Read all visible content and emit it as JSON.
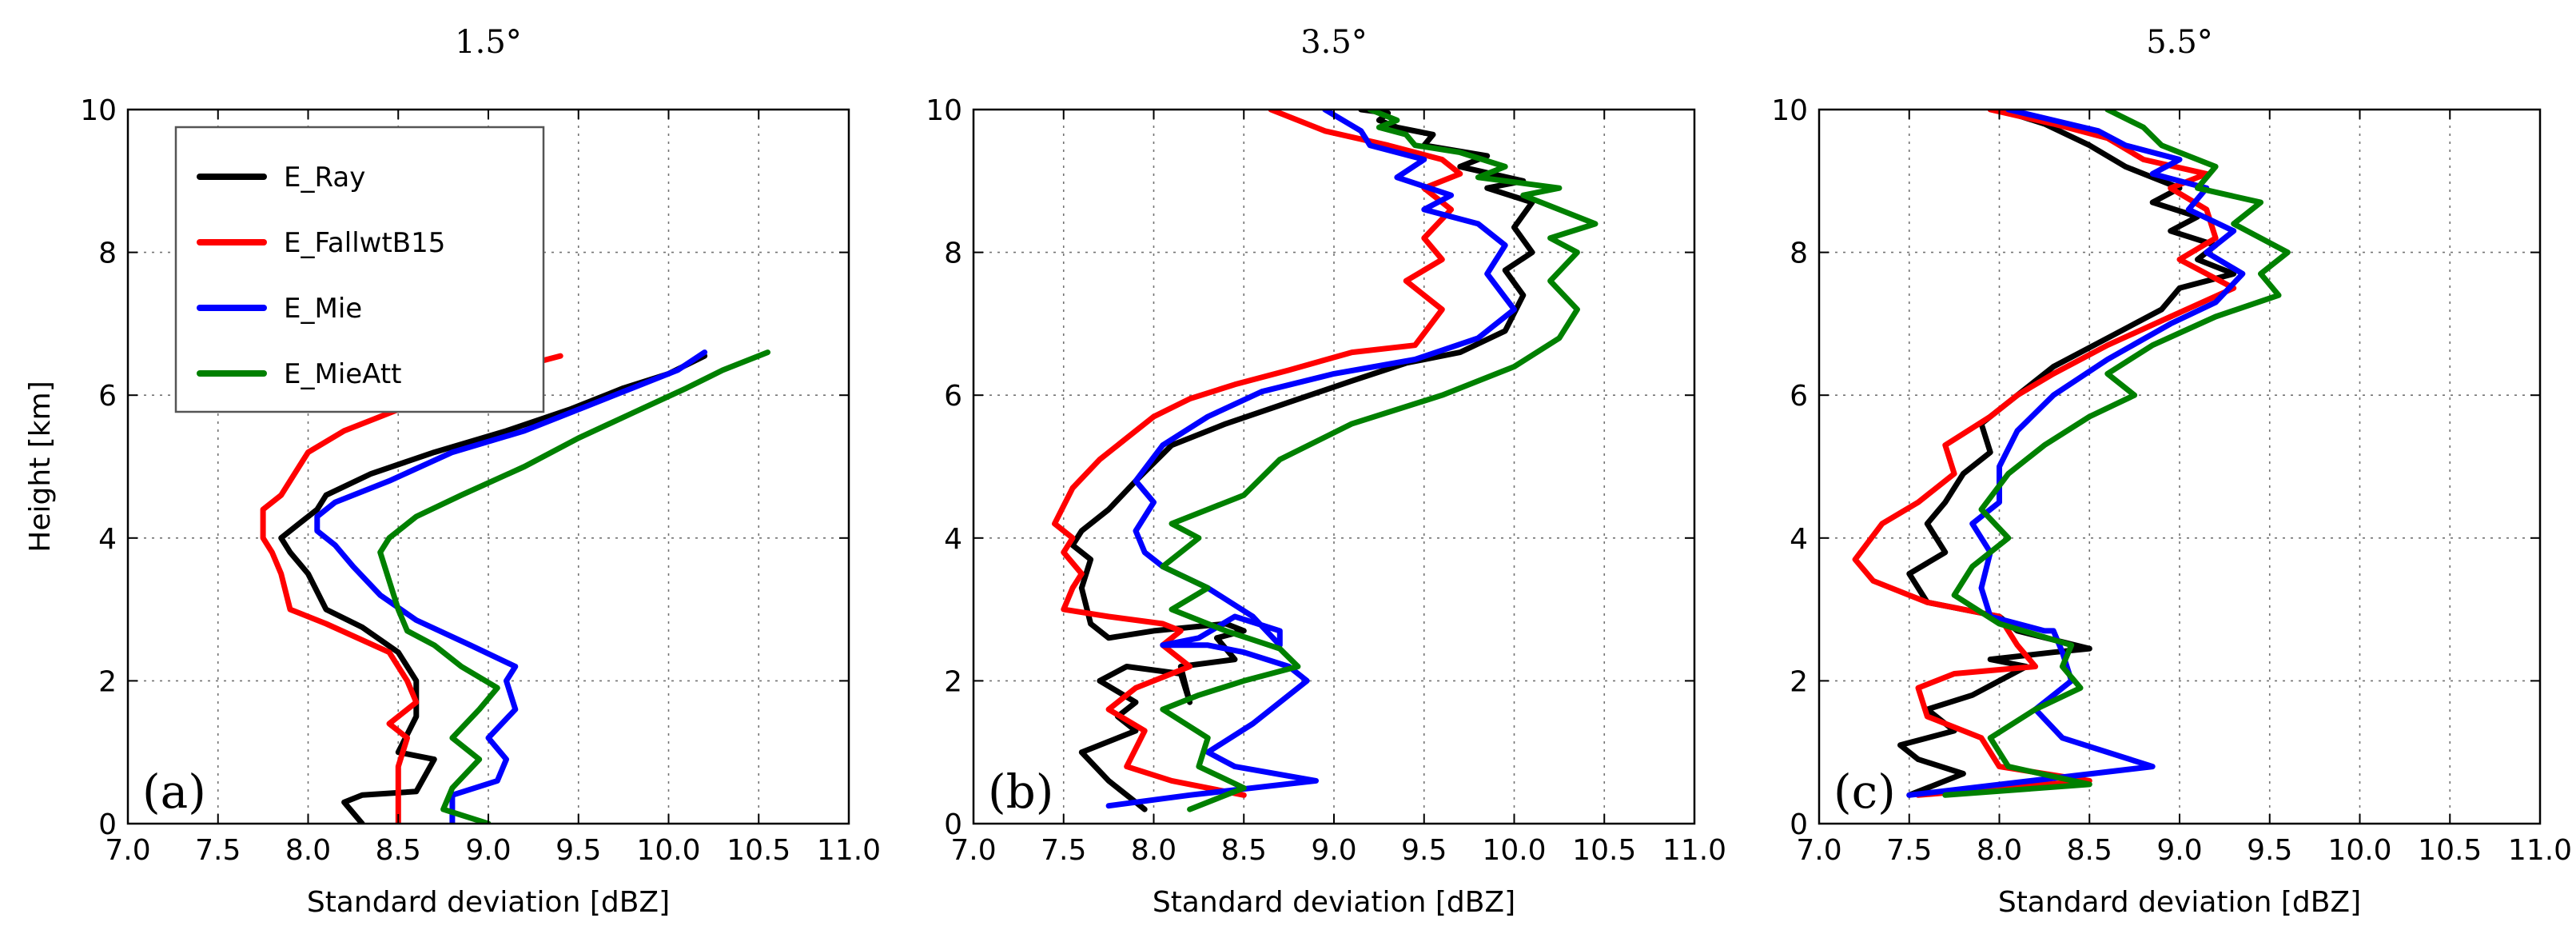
{
  "chart_data": [
    {
      "type": "line",
      "title": "1.5°",
      "panel_label": "(a)",
      "xlabel": "Standard deviation [dBZ]",
      "ylabel": "Height [km]",
      "xlim": [
        7.0,
        11.0
      ],
      "ylim": [
        0,
        10
      ],
      "xticks": [
        "7.0",
        "7.5",
        "8.0",
        "8.5",
        "9.0",
        "9.5",
        "10.0",
        "10.5",
        "11.0"
      ],
      "yticks": [
        "0",
        "2",
        "4",
        "6",
        "8",
        "10"
      ],
      "grid": true,
      "legend": {
        "position": "top-left",
        "entries": [
          {
            "label": "E_Ray",
            "color": "#000000"
          },
          {
            "label": "E_FallwtB15",
            "color": "#ff0000"
          },
          {
            "label": "E_Mie",
            "color": "#0000ff"
          },
          {
            "label": "E_MieAtt",
            "color": "#008000"
          }
        ]
      },
      "series": [
        {
          "name": "E_Ray",
          "color": "#000000",
          "x": [
            8.3,
            8.2,
            8.3,
            8.6,
            8.7,
            8.5,
            8.6,
            8.6,
            8.5,
            8.3,
            8.1,
            8.0,
            7.9,
            7.85,
            7.95,
            8.05,
            8.1,
            8.35,
            8.7,
            9.1,
            9.45,
            9.75,
            10.0,
            10.2
          ],
          "y": [
            0.0,
            0.3,
            0.4,
            0.45,
            0.9,
            1.0,
            1.5,
            2.0,
            2.4,
            2.75,
            3.0,
            3.5,
            3.8,
            4.0,
            4.2,
            4.4,
            4.6,
            4.9,
            5.2,
            5.5,
            5.8,
            6.1,
            6.3,
            6.55
          ]
        },
        {
          "name": "E_FallwtB15",
          "color": "#ff0000",
          "x": [
            8.5,
            8.5,
            8.5,
            8.55,
            8.45,
            8.6,
            8.55,
            8.45,
            8.1,
            7.9,
            7.85,
            7.8,
            7.75,
            7.75,
            7.85,
            7.95,
            8.0,
            8.2,
            8.5,
            8.8,
            9.1,
            9.4
          ],
          "y": [
            0.0,
            0.5,
            0.8,
            1.2,
            1.4,
            1.7,
            2.0,
            2.4,
            2.8,
            3.0,
            3.5,
            3.8,
            4.0,
            4.4,
            4.6,
            5.0,
            5.2,
            5.5,
            5.8,
            6.1,
            6.35,
            6.55
          ]
        },
        {
          "name": "E_Mie",
          "color": "#0000ff",
          "x": [
            8.8,
            8.8,
            9.05,
            9.1,
            9.0,
            9.15,
            9.1,
            9.15,
            8.9,
            8.6,
            8.4,
            8.25,
            8.15,
            8.05,
            8.05,
            8.15,
            8.45,
            8.8,
            9.2,
            9.55,
            9.85,
            10.05,
            10.2
          ],
          "y": [
            0.0,
            0.4,
            0.6,
            0.9,
            1.2,
            1.6,
            2.0,
            2.2,
            2.5,
            2.85,
            3.2,
            3.6,
            3.9,
            4.1,
            4.3,
            4.5,
            4.8,
            5.2,
            5.5,
            5.85,
            6.15,
            6.35,
            6.6
          ]
        },
        {
          "name": "E_MieAtt",
          "color": "#008000",
          "x": [
            9.0,
            8.75,
            8.8,
            8.95,
            8.8,
            8.95,
            9.05,
            8.85,
            8.7,
            8.55,
            8.5,
            8.45,
            8.4,
            8.45,
            8.6,
            8.85,
            9.2,
            9.5,
            9.8,
            10.1,
            10.3,
            10.55
          ],
          "y": [
            0.0,
            0.2,
            0.5,
            0.9,
            1.2,
            1.6,
            1.9,
            2.2,
            2.5,
            2.7,
            3.0,
            3.4,
            3.8,
            4.0,
            4.3,
            4.6,
            5.0,
            5.4,
            5.75,
            6.1,
            6.35,
            6.6
          ]
        }
      ]
    },
    {
      "type": "line",
      "title": "3.5°",
      "panel_label": "(b)",
      "xlabel": "Standard deviation [dBZ]",
      "ylabel": "",
      "xlim": [
        7.0,
        11.0
      ],
      "ylim": [
        0,
        10
      ],
      "xticks": [
        "7.0",
        "7.5",
        "8.0",
        "8.5",
        "9.0",
        "9.5",
        "10.0",
        "10.5",
        "11.0"
      ],
      "yticks": [
        "0",
        "2",
        "4",
        "6",
        "8",
        "10"
      ],
      "grid": true,
      "series": [
        {
          "name": "E_Ray",
          "color": "#000000",
          "x": [
            7.95,
            7.85,
            7.75,
            7.6,
            7.9,
            7.8,
            7.9,
            7.7,
            7.85,
            8.15,
            8.2,
            8.15,
            8.45,
            8.35,
            8.5,
            8.4,
            8.0,
            7.75,
            7.65,
            7.6,
            7.65,
            7.55,
            7.6,
            7.75,
            7.9,
            8.1,
            8.4,
            8.75,
            9.1,
            9.4,
            9.7,
            9.95,
            10.05,
            9.95,
            10.1,
            10.0,
            10.1,
            9.85,
            10.05,
            9.7,
            9.85,
            9.5,
            9.55,
            9.35,
            9.25,
            9.3,
            9.15
          ],
          "y": [
            0.2,
            0.4,
            0.6,
            1.0,
            1.3,
            1.5,
            1.7,
            2.0,
            2.2,
            2.1,
            1.7,
            2.2,
            2.3,
            2.6,
            2.7,
            2.8,
            2.7,
            2.6,
            2.8,
            3.3,
            3.7,
            3.9,
            4.1,
            4.4,
            4.8,
            5.3,
            5.6,
            5.9,
            6.2,
            6.45,
            6.6,
            6.9,
            7.4,
            7.75,
            8.0,
            8.35,
            8.7,
            8.9,
            9.0,
            9.2,
            9.35,
            9.5,
            9.65,
            9.75,
            9.85,
            9.95,
            10.0
          ]
        },
        {
          "name": "E_FallwtB15",
          "color": "#ff0000",
          "x": [
            8.5,
            8.1,
            7.85,
            7.95,
            7.75,
            7.9,
            8.2,
            8.05,
            8.15,
            8.05,
            7.75,
            7.5,
            7.55,
            7.6,
            7.5,
            7.55,
            7.45,
            7.55,
            7.7,
            7.85,
            8.0,
            8.2,
            8.45,
            8.75,
            9.1,
            9.45,
            9.6,
            9.4,
            9.6,
            9.5,
            9.65,
            9.5,
            9.7,
            9.6,
            9.3,
            8.95,
            8.8,
            8.65
          ],
          "y": [
            0.4,
            0.6,
            0.8,
            1.3,
            1.6,
            1.9,
            2.2,
            2.5,
            2.7,
            2.8,
            2.9,
            3.0,
            3.3,
            3.5,
            3.8,
            4.0,
            4.2,
            4.7,
            5.1,
            5.4,
            5.7,
            5.95,
            6.15,
            6.35,
            6.6,
            6.7,
            7.2,
            7.6,
            7.9,
            8.2,
            8.6,
            8.9,
            9.1,
            9.3,
            9.5,
            9.7,
            9.85,
            10.0
          ]
        },
        {
          "name": "E_Mie",
          "color": "#0000ff",
          "x": [
            7.75,
            8.2,
            8.9,
            8.45,
            8.3,
            8.55,
            8.85,
            8.75,
            8.5,
            8.3,
            8.05,
            8.25,
            8.45,
            8.7,
            8.7,
            8.55,
            8.3,
            8.05,
            7.95,
            7.9,
            8.0,
            7.9,
            8.05,
            8.3,
            8.6,
            9.0,
            9.45,
            9.8,
            10.0,
            9.85,
            9.95,
            9.8,
            9.5,
            9.65,
            9.35,
            9.5,
            9.2,
            9.15,
            8.95
          ],
          "y": [
            0.25,
            0.4,
            0.6,
            0.8,
            1.0,
            1.4,
            2.0,
            2.2,
            2.4,
            2.5,
            2.5,
            2.6,
            2.9,
            2.7,
            2.5,
            2.9,
            3.3,
            3.6,
            3.8,
            4.1,
            4.5,
            4.8,
            5.3,
            5.7,
            6.05,
            6.3,
            6.5,
            6.8,
            7.2,
            7.7,
            8.1,
            8.4,
            8.6,
            8.8,
            9.05,
            9.3,
            9.5,
            9.7,
            10.0
          ]
        },
        {
          "name": "E_MieAtt",
          "color": "#008000",
          "x": [
            8.2,
            8.5,
            8.25,
            8.3,
            8.05,
            8.25,
            8.5,
            8.8,
            8.7,
            8.4,
            8.1,
            8.3,
            8.05,
            8.25,
            8.1,
            8.5,
            8.7,
            9.1,
            9.6,
            10.0,
            10.25,
            10.35,
            10.2,
            10.35,
            10.2,
            10.45,
            10.05,
            10.25,
            9.8,
            9.95,
            9.7,
            9.45,
            9.4,
            9.25,
            9.35,
            9.2
          ],
          "y": [
            0.2,
            0.5,
            0.8,
            1.2,
            1.6,
            1.8,
            2.0,
            2.2,
            2.45,
            2.7,
            3.0,
            3.3,
            3.6,
            4.0,
            4.2,
            4.6,
            5.1,
            5.6,
            6.0,
            6.4,
            6.8,
            7.2,
            7.6,
            8.0,
            8.2,
            8.4,
            8.8,
            8.9,
            9.05,
            9.2,
            9.4,
            9.5,
            9.65,
            9.75,
            9.85,
            10.0
          ]
        }
      ]
    },
    {
      "type": "line",
      "title": "5.5°",
      "panel_label": "(c)",
      "xlabel": "Standard deviation [dBZ]",
      "ylabel": "",
      "xlim": [
        7.0,
        11.0
      ],
      "ylim": [
        0,
        10
      ],
      "xticks": [
        "7.0",
        "7.5",
        "8.0",
        "8.5",
        "9.0",
        "9.5",
        "10.0",
        "10.5",
        "11.0"
      ],
      "yticks": [
        "0",
        "2",
        "4",
        "6",
        "8",
        "10"
      ],
      "grid": true,
      "series": [
        {
          "name": "E_Ray",
          "color": "#000000",
          "x": [
            7.5,
            7.8,
            7.55,
            7.45,
            7.75,
            7.6,
            7.85,
            8.0,
            8.15,
            7.95,
            8.3,
            8.5,
            8.1,
            8.0,
            7.6,
            7.5,
            7.7,
            7.6,
            7.7,
            7.8,
            7.95,
            7.9,
            8.1,
            8.3,
            8.6,
            8.9,
            9.0,
            9.3,
            9.1,
            9.2,
            8.95,
            9.1,
            8.85,
            9.0,
            8.7,
            8.5,
            8.25,
            8.0
          ],
          "y": [
            0.4,
            0.7,
            0.9,
            1.1,
            1.3,
            1.6,
            1.8,
            2.0,
            2.2,
            2.3,
            2.4,
            2.45,
            2.7,
            2.9,
            3.1,
            3.5,
            3.8,
            4.2,
            4.5,
            4.9,
            5.2,
            5.6,
            6.0,
            6.4,
            6.8,
            7.2,
            7.5,
            7.7,
            7.9,
            8.1,
            8.3,
            8.5,
            8.7,
            8.9,
            9.2,
            9.5,
            9.8,
            10.0
          ]
        },
        {
          "name": "E_FallwtB15",
          "color": "#ff0000",
          "x": [
            7.55,
            8.5,
            8.0,
            7.9,
            7.6,
            7.55,
            7.75,
            8.2,
            8.1,
            8.0,
            7.6,
            7.3,
            7.2,
            7.35,
            7.55,
            7.75,
            7.7,
            7.95,
            8.1,
            8.3,
            8.6,
            8.95,
            9.3,
            9.0,
            9.2,
            9.15,
            8.95,
            9.15,
            8.8,
            8.6,
            8.3,
            7.95
          ],
          "y": [
            0.4,
            0.6,
            0.8,
            1.2,
            1.5,
            1.9,
            2.1,
            2.2,
            2.5,
            2.9,
            3.1,
            3.4,
            3.7,
            4.2,
            4.5,
            4.9,
            5.3,
            5.7,
            6.0,
            6.3,
            6.7,
            7.1,
            7.5,
            7.9,
            8.2,
            8.6,
            8.9,
            9.1,
            9.3,
            9.6,
            9.8,
            10.0
          ]
        },
        {
          "name": "E_Mie",
          "color": "#0000ff",
          "x": [
            7.5,
            8.85,
            8.35,
            8.2,
            8.4,
            8.35,
            8.3,
            8.25,
            7.95,
            7.9,
            7.95,
            7.85,
            8.0,
            8.0,
            8.1,
            8.3,
            8.6,
            8.95,
            9.2,
            9.35,
            9.15,
            9.3,
            9.05,
            9.15,
            8.85,
            9.0,
            8.7,
            8.55,
            8.3,
            8.05
          ],
          "y": [
            0.4,
            0.8,
            1.2,
            1.6,
            2.0,
            2.4,
            2.7,
            2.7,
            2.9,
            3.3,
            3.8,
            4.2,
            4.5,
            5.0,
            5.5,
            6.0,
            6.5,
            7.0,
            7.3,
            7.7,
            8.0,
            8.3,
            8.6,
            8.9,
            9.1,
            9.3,
            9.5,
            9.7,
            9.85,
            10.0
          ]
        },
        {
          "name": "E_MieAtt",
          "color": "#008000",
          "x": [
            7.7,
            8.5,
            8.05,
            7.95,
            8.2,
            8.45,
            8.35,
            8.4,
            8.0,
            7.75,
            7.85,
            8.05,
            7.9,
            8.05,
            8.25,
            8.5,
            8.75,
            8.6,
            8.85,
            9.2,
            9.55,
            9.45,
            9.6,
            9.3,
            9.45,
            9.1,
            9.2,
            8.9,
            8.8,
            8.6
          ],
          "y": [
            0.4,
            0.55,
            0.8,
            1.2,
            1.6,
            1.9,
            2.2,
            2.5,
            2.8,
            3.2,
            3.6,
            4.0,
            4.4,
            4.9,
            5.3,
            5.7,
            6.0,
            6.3,
            6.7,
            7.1,
            7.4,
            7.7,
            8.0,
            8.4,
            8.7,
            8.9,
            9.2,
            9.5,
            9.75,
            10.0
          ]
        }
      ]
    }
  ]
}
